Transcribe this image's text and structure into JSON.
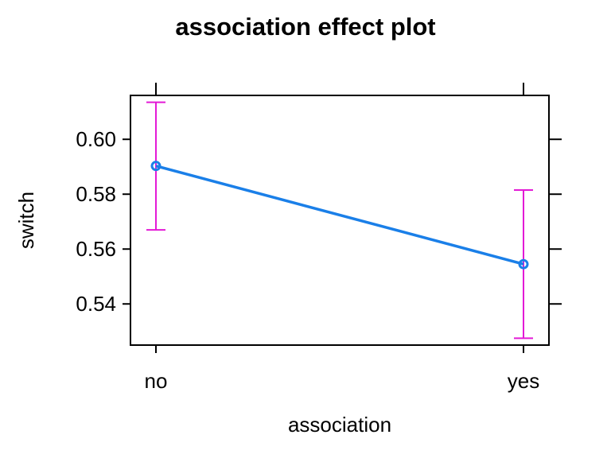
{
  "chart_data": {
    "type": "line",
    "title": "association effect plot",
    "xlabel": "association",
    "ylabel": "switch",
    "categories": [
      "no",
      "yes"
    ],
    "values": [
      0.5903,
      0.5545
    ],
    "ci_lower": [
      0.567,
      0.5275
    ],
    "ci_upper": [
      0.6135,
      0.5815
    ],
    "ylim": [
      0.525,
      0.616
    ],
    "yticks": [
      0.54,
      0.56,
      0.58,
      0.6
    ],
    "ytick_labels": [
      "0.54",
      "0.56",
      "0.58",
      "0.60"
    ],
    "grid": false,
    "colors": {
      "line": "#1a7fe8",
      "ci": "#e31ad6"
    }
  }
}
